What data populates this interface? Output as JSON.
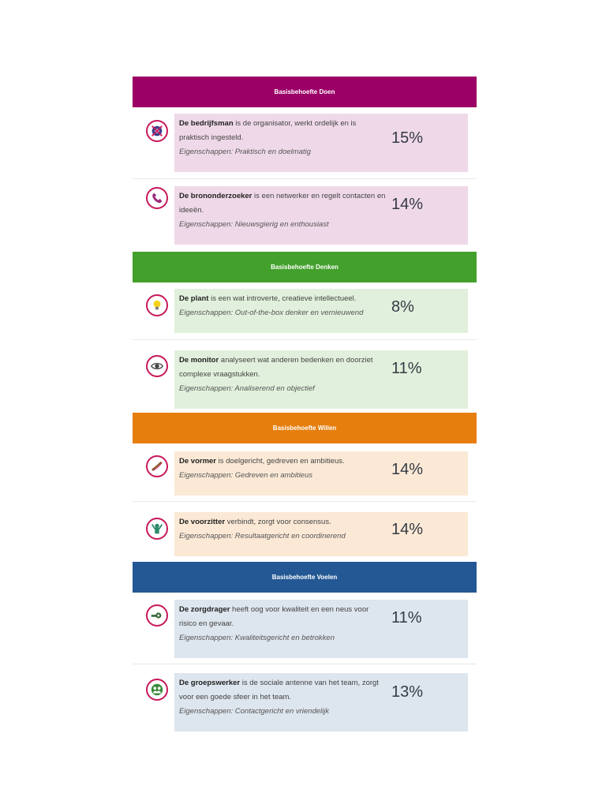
{
  "sections": [
    {
      "title": "Basisbehoefte Doen",
      "color": "#9b0066",
      "card_bg": "#efd9e8",
      "rows": [
        {
          "icon": "gear-tools-icon",
          "name": "De bedrijfsman",
          "desc": " is de organisator, werkt ordelijk en is praktisch ingesteld.",
          "props": "Eigenschappen: Praktisch en doelmatig",
          "percent": "15%"
        },
        {
          "icon": "telephone-icon",
          "name": "De brononderzoeker",
          "desc": " is een netwerker en regelt contacten en ideeën.",
          "props": "Eigenschappen: Nieuwsgierig en enthousiast",
          "percent": "14%"
        }
      ]
    },
    {
      "title": "Basisbehoefte Denken",
      "color": "#43a02c",
      "card_bg": "#e1f0dc",
      "rows": [
        {
          "icon": "lightbulb-icon",
          "name": "De plant",
          "desc": " is een wat introverte, creatieve intellectueel.",
          "props": "Eigenschappen: Out-of-the-box denker en vernieuwend",
          "percent": "8%"
        },
        {
          "icon": "eye-icon",
          "name": "De monitor",
          "desc": " analyseert wat anderen bedenken en doorziet complexe vraagstukken.",
          "props": "Eigenschappen: Analiserend en objectief",
          "percent": "11%"
        }
      ]
    },
    {
      "title": "Basisbehoefte Willen",
      "color": "#e67e0e",
      "card_bg": "#fbe9d6",
      "rows": [
        {
          "icon": "horn-icon",
          "name": "De vormer",
          "desc": " is doelgericht, gedreven en ambitieus.",
          "props": "Eigenschappen: Gedreven en ambitieus",
          "percent": "14%"
        },
        {
          "icon": "person-arms-raised-icon",
          "name": "De voorzitter",
          "desc": " verbindt, zorgt voor consensus.",
          "props": "Eigenschappen: Resultaatgericht en coordinerend",
          "percent": "14%"
        }
      ]
    },
    {
      "title": "Basisbehoefte Voelen",
      "color": "#245894",
      "card_bg": "#dde5ee",
      "rows": [
        {
          "icon": "magnifier-eye-icon",
          "name": "De zorgdrager",
          "desc": " heeft oog voor kwaliteit en een neus voor risico en gevaar.",
          "props": "Eigenschappen: Kwaliteitsgericht en betrokken",
          "percent": "11%"
        },
        {
          "icon": "group-people-icon",
          "name": "De groepswerker",
          "desc": " is de sociale antenne van het team, zorgt voor een goede sfeer in het team.",
          "props": "Eigenschappen: Contactgericht en vriendelijk",
          "percent": "13%"
        }
      ]
    }
  ]
}
